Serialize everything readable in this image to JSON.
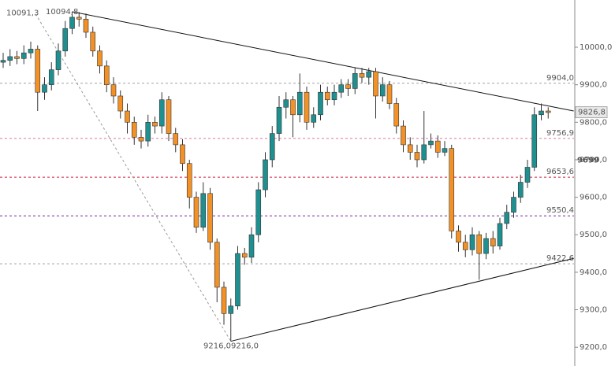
{
  "chart_data": {
    "type": "candlestick",
    "open": [
      9960,
      9965,
      9975,
      9970,
      9985,
      9995,
      9880,
      9900,
      9940,
      9990,
      10050,
      10080,
      10075,
      10040,
      9990,
      9950,
      9900,
      9870,
      9830,
      9800,
      9760,
      9750,
      9800,
      9790,
      9860,
      9770,
      9740,
      9690,
      9600,
      9520,
      9610,
      9480,
      9360,
      9290,
      9310,
      9450,
      9440,
      9500,
      9620,
      9700,
      9770,
      9840,
      9860,
      9820,
      9880,
      9800,
      9820,
      9880,
      9860,
      9880,
      9900,
      9890,
      9930,
      9920,
      9935,
      9870,
      9900,
      9850,
      9790,
      9740,
      9720,
      9700,
      9740,
      9750,
      9720,
      9730,
      9510,
      9480,
      9460,
      9500,
      9450,
      9490,
      9470,
      9530,
      9560,
      9600,
      9640,
      9680,
      9820,
      9830
    ],
    "high": [
      9985,
      9995,
      9990,
      10005,
      10015,
      10005,
      9920,
      9960,
      10010,
      10070,
      10094.8,
      10094,
      10090,
      10055,
      10005,
      9965,
      9920,
      9885,
      9850,
      9815,
      9780,
      9820,
      9815,
      9880,
      9870,
      9785,
      9755,
      9700,
      9615,
      9640,
      9625,
      9490,
      9375,
      9330,
      9470,
      9465,
      9520,
      9640,
      9720,
      9790,
      9870,
      9880,
      9870,
      9930,
      9895,
      9840,
      9900,
      9895,
      9900,
      9915,
      9915,
      9945,
      9945,
      9945,
      9945,
      9920,
      9910,
      9865,
      9805,
      9760,
      9740,
      9830,
      9770,
      9765,
      9750,
      9740,
      9525,
      9500,
      9520,
      9510,
      9505,
      9510,
      9545,
      9580,
      9615,
      9660,
      9700,
      9840,
      9850,
      9840
    ],
    "low": [
      9945,
      9950,
      9955,
      9955,
      9970,
      9830,
      9860,
      9885,
      9925,
      9975,
      10035,
      10055,
      10025,
      9975,
      9930,
      9880,
      9850,
      9810,
      9770,
      9740,
      9730,
      9735,
      9770,
      9770,
      9750,
      9720,
      9670,
      9570,
      9505,
      9510,
      9460,
      9320,
      9260,
      9216,
      9300,
      9420,
      9425,
      9480,
      9600,
      9680,
      9750,
      9810,
      9760,
      9800,
      9780,
      9785,
      9805,
      9845,
      9845,
      9865,
      9870,
      9875,
      9905,
      9900,
      9810,
      9855,
      9835,
      9770,
      9720,
      9700,
      9680,
      9690,
      9730,
      9705,
      9710,
      9490,
      9455,
      9440,
      9445,
      9380,
      9435,
      9450,
      9460,
      9515,
      9545,
      9585,
      9625,
      9670,
      9805,
      9810
    ],
    "close": [
      9965,
      9975,
      9970,
      9985,
      9995,
      9880,
      9900,
      9940,
      9990,
      10050,
      10080,
      10075,
      10040,
      9990,
      9950,
      9900,
      9870,
      9830,
      9800,
      9760,
      9750,
      9800,
      9790,
      9860,
      9770,
      9740,
      9690,
      9600,
      9520,
      9610,
      9480,
      9360,
      9290,
      9310,
      9450,
      9440,
      9500,
      9620,
      9700,
      9770,
      9840,
      9860,
      9820,
      9880,
      9800,
      9820,
      9880,
      9860,
      9880,
      9900,
      9890,
      9930,
      9920,
      9935,
      9870,
      9900,
      9850,
      9790,
      9740,
      9720,
      9700,
      9740,
      9750,
      9720,
      9730,
      9510,
      9480,
      9460,
      9500,
      9450,
      9490,
      9470,
      9530,
      9560,
      9600,
      9640,
      9680,
      9820,
      9830,
      9826
    ],
    "up_color": "#1f8f8f",
    "down_color": "#f29126",
    "ylim": [
      9150,
      10126
    ],
    "yticks": [
      {
        "value": 9200,
        "label": "9200,0"
      },
      {
        "value": 9300,
        "label": "9300,0"
      },
      {
        "value": 9400,
        "label": "9400,0"
      },
      {
        "value": 9500,
        "label": "9500,0"
      },
      {
        "value": 9600,
        "label": "9600,0"
      },
      {
        "value": 9700,
        "label": "9700,0"
      },
      {
        "value": 9800,
        "label": "9800,0"
      },
      {
        "value": 9900,
        "label": "9900,0"
      },
      {
        "value": 10000,
        "label": "10000,0"
      }
    ],
    "levels": [
      {
        "value": 9904.0,
        "label": "9904,0",
        "color": "#a0a0a0"
      },
      {
        "value": 9756.9,
        "label": "9756,9",
        "color": "#e070a0"
      },
      {
        "value": 9653.6,
        "label": "9653,6",
        "color": "#d02040"
      },
      {
        "value": 9550.4,
        "label": "9550,4",
        "color": "#8020a0"
      },
      {
        "value": 9422.6,
        "label": "9422,6",
        "color": "#a0a0a0"
      }
    ],
    "marker": {
      "value": 9699,
      "color": "#e0208a"
    },
    "current_price": {
      "value": 9826.8,
      "label": "9826,8"
    },
    "annotations": [
      {
        "value": 10091.3,
        "label": "10091,3"
      },
      {
        "value": 10094.8,
        "label": "10094,8"
      },
      {
        "value": 9216.0,
        "label": "9216,0"
      },
      {
        "value": 9216.0,
        "label": "9216,0"
      }
    ],
    "trendlines": [
      {
        "x": [
          10,
          82.7
        ],
        "y": [
          10094.8,
          9830
        ],
        "style": "solid"
      },
      {
        "x": [
          33,
          82.7
        ],
        "y": [
          9216,
          9437
        ],
        "style": "solid"
      },
      {
        "x": [
          4.7,
          33
        ],
        "y": [
          10089,
          9216
        ],
        "style": "dashed"
      }
    ]
  }
}
